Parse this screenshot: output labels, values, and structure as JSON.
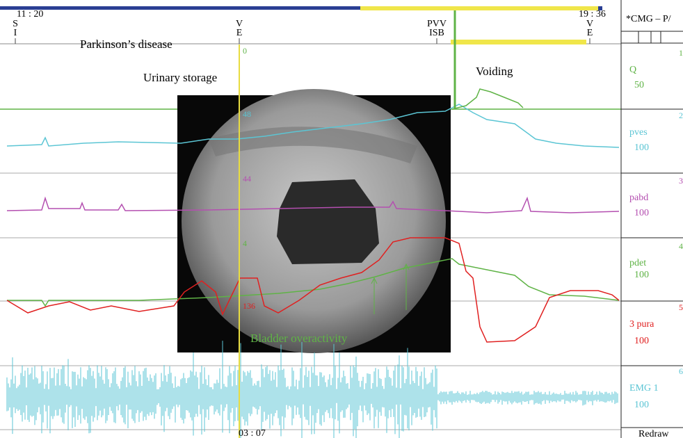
{
  "header": {
    "start_time": "11 : 20",
    "end_time": "19 : 36",
    "markers": [
      {
        "top": "S",
        "bottom": "I"
      },
      {
        "top": "V",
        "bottom": "E"
      },
      {
        "top": "PVV",
        "bottom": "ISB"
      },
      {
        "top": "V",
        "bottom": "E"
      }
    ]
  },
  "panel_title": "*CMG – P/",
  "annotations": {
    "disease": "Parkinson’s disease",
    "storage": "Urinary storage",
    "voiding": "Voiding",
    "overactivity": "Bladder overactivity"
  },
  "channels": [
    {
      "name": "Q",
      "scale": "50",
      "cursor_value": "0",
      "index": "1"
    },
    {
      "name": "pves",
      "scale": "100",
      "cursor_value": "48",
      "index": "2"
    },
    {
      "name": "pabd",
      "scale": "100",
      "cursor_value": "44",
      "index": "3"
    },
    {
      "name": "pdet",
      "scale": "100",
      "cursor_value": "4",
      "index": "4"
    },
    {
      "name": "3 pura",
      "scale": "100",
      "cursor_value": "136",
      "index": "5"
    },
    {
      "name": "EMG 1",
      "scale": "100",
      "index": "6"
    }
  ],
  "cursor_time": "03 : 07",
  "button": "Redraw"
}
